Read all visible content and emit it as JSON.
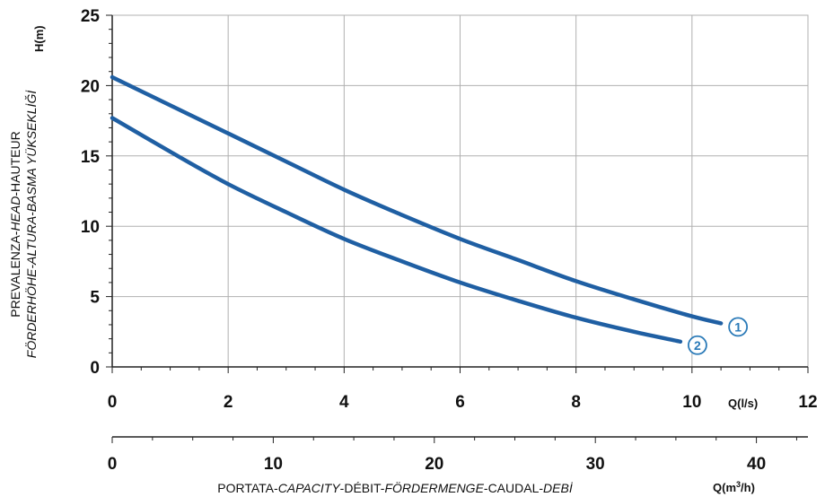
{
  "colors": {
    "curve": "#1f5fa3",
    "grid": "#b0b0b0",
    "axis": "#222222",
    "marker": "#2a7ab8"
  },
  "chart_data": {
    "type": "line",
    "grid": true,
    "x_primary": {
      "unit_label": "Q(l/s)",
      "range": [
        0,
        12
      ],
      "ticks": [
        0,
        2,
        4,
        6,
        8,
        10,
        12
      ]
    },
    "x_secondary": {
      "unit_base": "Q(m",
      "unit_sup": "3",
      "unit_tail": "/h)",
      "range": [
        0,
        43.2
      ],
      "ticks": [
        0,
        10,
        20,
        30,
        40
      ]
    },
    "y": {
      "unit_label": "H(m)",
      "range": [
        0,
        25
      ],
      "ticks": [
        0,
        5,
        10,
        15,
        20,
        25
      ]
    },
    "ylabel": {
      "line1": [
        {
          "text": "PREVALENZA-",
          "italic": false
        },
        {
          "text": "HEAD",
          "italic": true
        },
        {
          "text": "-HAUTEUR",
          "italic": false
        }
      ],
      "line2": [
        {
          "text": "FÖRDERHÖHE-ALTURA-BASMA YÜKSEKLİĞİ",
          "italic": true
        }
      ]
    },
    "xlabel": [
      {
        "text": "PORTATA-",
        "italic": false
      },
      {
        "text": "CAPACITY",
        "italic": true
      },
      {
        "text": "-DÉBIT-",
        "italic": false
      },
      {
        "text": "FÖRDERMENGE",
        "italic": true
      },
      {
        "text": "-CAUDAL-",
        "italic": false
      },
      {
        "text": "DEBİ",
        "italic": true
      }
    ],
    "series": [
      {
        "marker": "1",
        "x": [
          0,
          1,
          2,
          3,
          4,
          5,
          6,
          7,
          8,
          9,
          10,
          10.5
        ],
        "y": [
          20.6,
          18.6,
          16.6,
          14.6,
          12.6,
          10.8,
          9.1,
          7.6,
          6.1,
          4.8,
          3.6,
          3.1
        ]
      },
      {
        "marker": "2",
        "x": [
          0,
          1,
          2,
          3,
          4,
          5,
          6,
          7,
          8,
          9,
          9.8
        ],
        "y": [
          17.7,
          15.3,
          13.0,
          11.0,
          9.1,
          7.5,
          6.0,
          4.7,
          3.5,
          2.5,
          1.8
        ]
      }
    ]
  }
}
